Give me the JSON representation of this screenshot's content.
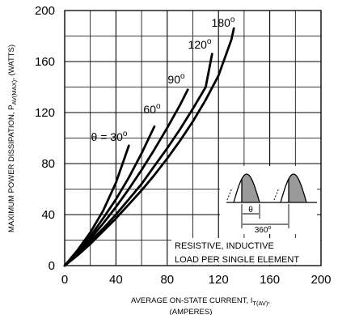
{
  "chart_data": {
    "type": "line",
    "xlabel_main": "AVERAGE ON-STATE  CURRENT, I",
    "xlabel_sub": "T(AV)",
    "xlabel_tail": ",",
    "xlabel_line2": "(AMPERES)",
    "ylabel_main": "MAXIMUM POWER DISSIPATION, P",
    "ylabel_sub": "AV(MAX)",
    "ylabel_tail": ", (WATTS)",
    "xlim": [
      0,
      200
    ],
    "ylim": [
      0,
      200
    ],
    "x_ticks": [
      "0",
      "40",
      "80",
      "120",
      "160",
      "200"
    ],
    "y_ticks": [
      "0",
      "40",
      "80",
      "120",
      "160",
      "200"
    ],
    "x_tick_values": [
      0,
      40,
      80,
      120,
      160,
      200
    ],
    "y_tick_values": [
      0,
      40,
      80,
      120,
      160,
      200
    ],
    "grid": true,
    "grid_step": 20,
    "series": [
      {
        "name": "30",
        "label_prefix": "θ = ",
        "points": [
          [
            0,
            0
          ],
          [
            10,
            12
          ],
          [
            20,
            26
          ],
          [
            30,
            43
          ],
          [
            40,
            65
          ],
          [
            50,
            94
          ]
        ]
      },
      {
        "name": "60",
        "label_prefix": "",
        "points": [
          [
            0,
            0
          ],
          [
            10,
            11
          ],
          [
            20,
            23
          ],
          [
            30,
            37
          ],
          [
            40,
            52
          ],
          [
            50,
            69
          ],
          [
            60,
            88
          ],
          [
            70,
            109
          ]
        ]
      },
      {
        "name": "90",
        "label_prefix": "",
        "points": [
          [
            0,
            0
          ],
          [
            10,
            10
          ],
          [
            20,
            21
          ],
          [
            30,
            33
          ],
          [
            40,
            46
          ],
          [
            50,
            60
          ],
          [
            60,
            75
          ],
          [
            70,
            91
          ],
          [
            80,
            108
          ],
          [
            90,
            126
          ],
          [
            96,
            138
          ]
        ]
      },
      {
        "name": "120",
        "label_prefix": "",
        "points": [
          [
            0,
            0
          ],
          [
            10,
            9
          ],
          [
            20,
            19
          ],
          [
            30,
            29
          ],
          [
            40,
            40
          ],
          [
            50,
            52
          ],
          [
            60,
            64
          ],
          [
            70,
            78
          ],
          [
            80,
            92
          ],
          [
            90,
            107
          ],
          [
            100,
            123
          ],
          [
            110,
            140
          ],
          [
            115,
            166
          ]
        ]
      },
      {
        "name": "180",
        "label_prefix": "",
        "points": [
          [
            0,
            0
          ],
          [
            10,
            8
          ],
          [
            20,
            17
          ],
          [
            30,
            27
          ],
          [
            40,
            37
          ],
          [
            50,
            48
          ],
          [
            60,
            59
          ],
          [
            70,
            71
          ],
          [
            80,
            84
          ],
          [
            90,
            98
          ],
          [
            100,
            113
          ],
          [
            110,
            130
          ],
          [
            120,
            149
          ],
          [
            130,
            177
          ],
          [
            132,
            186
          ]
        ]
      }
    ],
    "degree_mark": "o",
    "inset_theta": "θ",
    "inset_period": "360",
    "note_line1": "RESISTIVE, INDUCTIVE",
    "note_line2": "LOAD PER SINGLE ELEMENT",
    "series_color": "#000000",
    "fill_color": "#9a9a9a",
    "grid_color": "#000000"
  }
}
